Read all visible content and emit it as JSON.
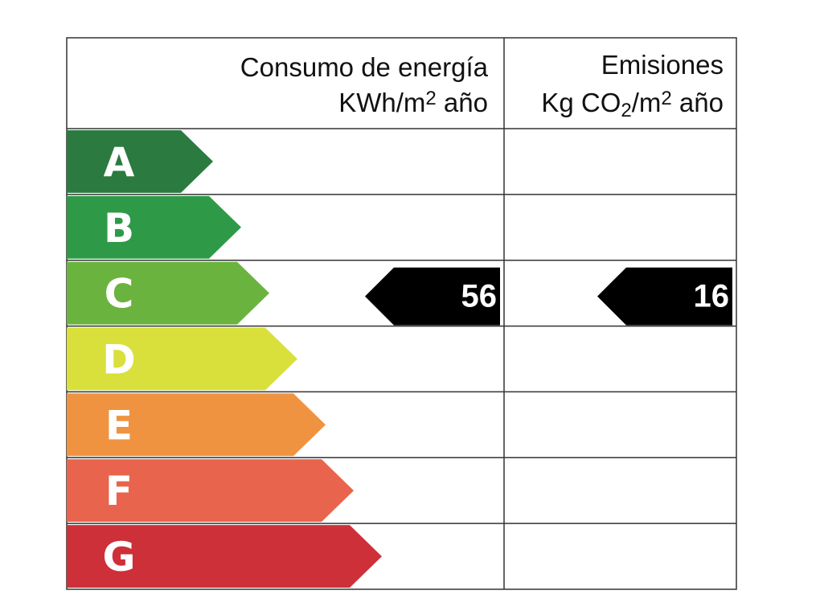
{
  "header": {
    "energy": {
      "title": "Consumo de energía",
      "unit": [
        "KWh/m",
        "2",
        " año"
      ]
    },
    "emissions": {
      "title": "Emisiones",
      "unit": [
        "Kg CO",
        "2",
        "/m",
        "2",
        " año"
      ]
    }
  },
  "rows": [
    {
      "letter": "A",
      "color": "#2b7a3f"
    },
    {
      "letter": "B",
      "color": "#2e9a47"
    },
    {
      "letter": "C",
      "color": "#6bb33f",
      "energy": 56,
      "emissions": 16
    },
    {
      "letter": "D",
      "color": "#d9e03b"
    },
    {
      "letter": "E",
      "color": "#f09340"
    },
    {
      "letter": "F",
      "color": "#e9644c"
    },
    {
      "letter": "G",
      "color": "#cd3038"
    }
  ]
}
